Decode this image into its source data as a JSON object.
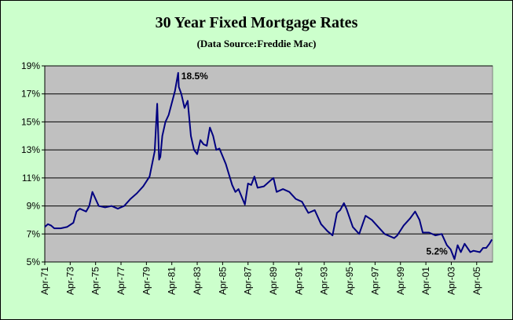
{
  "chart_data": {
    "type": "line",
    "title": "30 Year Fixed Mortgage Rates",
    "subtitle": "(Data Source:Freddie Mac)",
    "xlabel": "",
    "ylabel": "",
    "ylim": [
      5,
      19
    ],
    "y_ticks": [
      "5%",
      "7%",
      "9%",
      "11%",
      "13%",
      "15%",
      "17%",
      "19%"
    ],
    "x_ticks": [
      "Apr-71",
      "Apr-73",
      "Apr-75",
      "Apr-77",
      "Apr-79",
      "Apr-81",
      "Apr-83",
      "Apr-85",
      "Apr-87",
      "Apr-89",
      "Apr-91",
      "Apr-93",
      "Apr-95",
      "Apr-97",
      "Apr-99",
      "Apr-01",
      "Apr-03",
      "Apr-05"
    ],
    "xlim": [
      1971.25,
      2006.5
    ],
    "grid": true,
    "legend": "none",
    "colors": {
      "plot_area": "#c0c0c0",
      "chart_area": "#ccffcc",
      "line": "#000080",
      "grid": "#000000"
    },
    "series": [
      {
        "x": [
          1971.25,
          1971.5,
          1971.75,
          1972.0,
          1972.5,
          1973.0,
          1973.5,
          1973.75,
          1974.0,
          1974.5,
          1974.75,
          1975.0,
          1975.5,
          1976.0,
          1976.5,
          1977.0,
          1977.5,
          1978.0,
          1978.5,
          1979.0,
          1979.5,
          1979.9,
          1980.1,
          1980.25,
          1980.35,
          1980.5,
          1980.75,
          1981.0,
          1981.5,
          1981.75,
          1981.8,
          1982.0,
          1982.25,
          1982.5,
          1982.75,
          1983.0,
          1983.25,
          1983.5,
          1983.75,
          1984.0,
          1984.25,
          1984.5,
          1984.75,
          1985.0,
          1985.5,
          1986.0,
          1986.25,
          1986.5,
          1987.0,
          1987.25,
          1987.5,
          1987.75,
          1988.0,
          1988.5,
          1989.0,
          1989.25,
          1989.5,
          1990.0,
          1990.5,
          1991.0,
          1991.5,
          1992.0,
          1992.5,
          1993.0,
          1993.5,
          1993.9,
          1994.25,
          1994.5,
          1994.8,
          1995.0,
          1995.5,
          1996.0,
          1996.5,
          1997.0,
          1997.5,
          1998.0,
          1998.75,
          1999.0,
          1999.5,
          2000.0,
          2000.4,
          2000.75,
          2001.0,
          2001.5,
          2002.0,
          2002.5,
          2002.9,
          2003.2,
          2003.5,
          2003.75,
          2004.0,
          2004.3,
          2004.75,
          2005.0,
          2005.5,
          2005.75,
          2006.0,
          2006.25,
          2006.45
        ],
        "y": [
          7.5,
          7.7,
          7.6,
          7.4,
          7.4,
          7.5,
          7.8,
          8.6,
          8.8,
          8.6,
          9.0,
          10.0,
          9.0,
          8.9,
          9.0,
          8.8,
          9.0,
          9.5,
          9.9,
          10.4,
          11.1,
          12.9,
          16.3,
          12.3,
          12.5,
          14.0,
          15.0,
          15.5,
          17.2,
          18.5,
          17.5,
          17.0,
          16.0,
          16.5,
          14.0,
          13.0,
          12.7,
          13.7,
          13.4,
          13.3,
          14.6,
          14.0,
          13.0,
          13.1,
          12.0,
          10.5,
          10.0,
          10.2,
          9.1,
          10.6,
          10.5,
          11.1,
          10.3,
          10.4,
          10.8,
          11.0,
          10.0,
          10.2,
          10.0,
          9.5,
          9.3,
          8.5,
          8.7,
          7.7,
          7.2,
          6.9,
          8.5,
          8.7,
          9.2,
          8.8,
          7.5,
          7.0,
          8.3,
          8.0,
          7.5,
          7.0,
          6.7,
          6.9,
          7.6,
          8.1,
          8.6,
          8.0,
          7.1,
          7.1,
          6.9,
          7.0,
          6.2,
          5.9,
          5.2,
          6.2,
          5.7,
          6.3,
          5.7,
          5.8,
          5.7,
          6.0,
          6.0,
          6.3,
          6.6
        ]
      }
    ],
    "annotations": [
      {
        "text": "18.5%",
        "x": 1981.75,
        "y": 18.5
      },
      {
        "text": "5.2%",
        "x": 2003.5,
        "y": 5.2
      }
    ]
  }
}
